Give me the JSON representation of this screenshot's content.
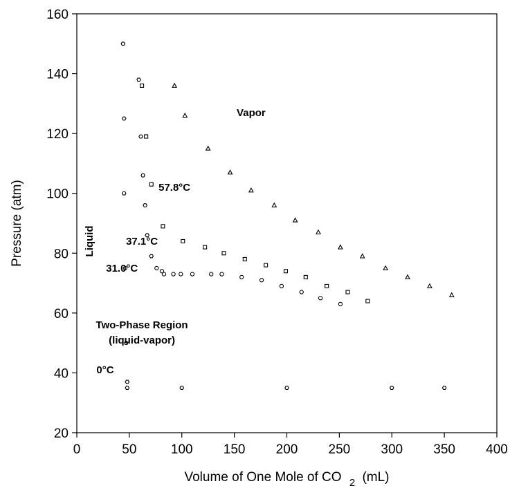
{
  "chart_data": {
    "type": "scatter",
    "title": "",
    "xlabel": "Volume of One Mole of CO",
    "xlabel_subscript": "2",
    "xlabel_suffix": "(mL)",
    "ylabel": "Pressure (atm)",
    "xlim": [
      0,
      400
    ],
    "ylim": [
      20,
      160
    ],
    "x_ticks": [
      0,
      50,
      100,
      150,
      200,
      250,
      300,
      350,
      400
    ],
    "y_ticks": [
      20,
      40,
      60,
      80,
      100,
      120,
      140,
      160
    ],
    "grid": false,
    "legend": "none",
    "annotations": [
      {
        "text": "Vapor",
        "x": 166,
        "y": 127
      },
      {
        "text": "57.8°C",
        "x": 93,
        "y": 102
      },
      {
        "text": "37.1°C",
        "x": 62,
        "y": 84
      },
      {
        "text": "31.0°C",
        "x": 43,
        "y": 75
      },
      {
        "text": "Two-Phase Region",
        "x": 62,
        "y": 56
      },
      {
        "text": "(liquid-vapor)",
        "x": 62,
        "y": 51
      },
      {
        "text": "0°C",
        "x": 27,
        "y": 41
      },
      {
        "text": "Liquid",
        "x": 12,
        "y": 84,
        "vertical": true
      }
    ],
    "series": [
      {
        "marker": "hexagon",
        "points": [
          [
            44,
            150
          ],
          [
            59,
            138
          ],
          [
            45,
            125
          ],
          [
            61,
            119
          ],
          [
            63,
            106
          ],
          [
            45,
            100
          ],
          [
            65,
            96
          ],
          [
            67,
            86
          ],
          [
            71,
            79
          ]
        ]
      },
      {
        "marker": "circle",
        "points": [
          [
            46,
            75
          ],
          [
            76,
            75
          ],
          [
            81,
            74
          ],
          [
            83,
            73
          ],
          [
            92,
            73
          ],
          [
            99,
            73
          ],
          [
            110,
            73
          ],
          [
            128,
            73
          ],
          [
            138,
            73
          ],
          [
            157,
            72
          ],
          [
            176,
            71
          ],
          [
            195,
            69
          ],
          [
            214,
            67
          ],
          [
            232,
            65
          ],
          [
            251,
            63
          ]
        ]
      },
      {
        "marker": "square",
        "points": [
          [
            62,
            136
          ],
          [
            66,
            119
          ],
          [
            71,
            103
          ],
          [
            82,
            89
          ],
          [
            101,
            84
          ],
          [
            122,
            82
          ],
          [
            140,
            80
          ],
          [
            160,
            78
          ],
          [
            180,
            76
          ],
          [
            199,
            74
          ],
          [
            218,
            72
          ],
          [
            238,
            69
          ],
          [
            258,
            67
          ],
          [
            277,
            64
          ]
        ]
      },
      {
        "marker": "triangle",
        "points": [
          [
            93,
            136
          ],
          [
            103,
            126
          ],
          [
            125,
            115
          ],
          [
            146,
            107
          ],
          [
            166,
            101
          ],
          [
            188,
            96
          ],
          [
            208,
            91
          ],
          [
            230,
            87
          ],
          [
            251,
            82
          ],
          [
            272,
            79
          ],
          [
            294,
            75
          ],
          [
            315,
            72
          ],
          [
            336,
            69
          ],
          [
            357,
            66
          ]
        ]
      },
      {
        "marker": "hexagon",
        "points": [
          [
            47,
            50
          ],
          [
            48,
            37
          ],
          [
            48,
            35
          ],
          [
            100,
            35
          ],
          [
            200,
            35
          ],
          [
            300,
            35
          ],
          [
            350,
            35
          ]
        ]
      }
    ]
  }
}
